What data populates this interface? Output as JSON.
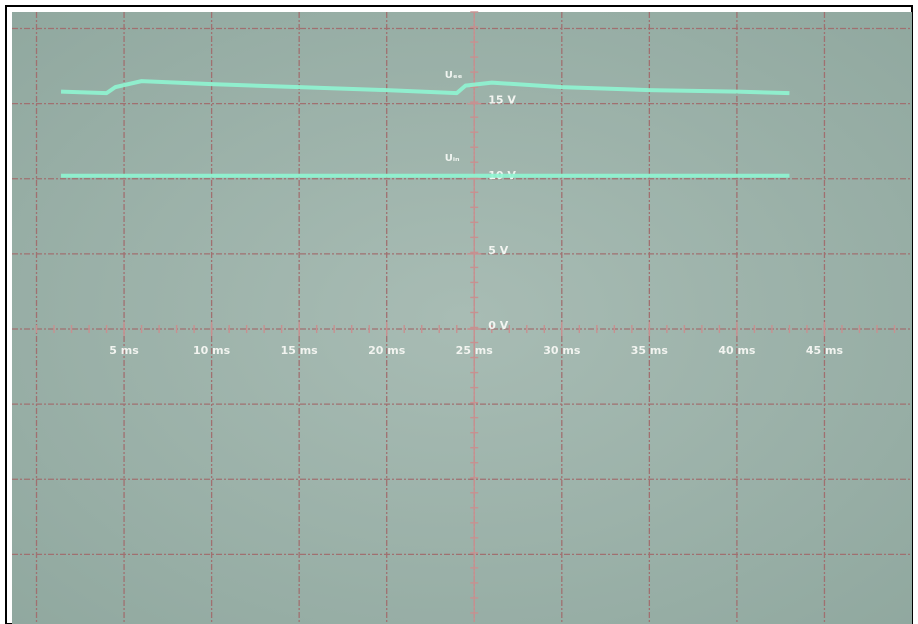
{
  "chart_data": {
    "type": "line",
    "x": [
      1.4,
      4,
      4.5,
      6,
      10,
      15,
      20,
      24,
      24.5,
      26,
      30,
      35,
      40,
      43
    ],
    "series": [
      {
        "name": "Uₑₑ",
        "color": "#8ff5d2",
        "values": [
          15.8,
          15.7,
          16.1,
          16.5,
          16.3,
          16.1,
          15.9,
          15.7,
          16.2,
          16.4,
          16.1,
          15.9,
          15.8,
          15.7
        ]
      },
      {
        "name": "Uᵢₙ",
        "color": "#8ff5d2",
        "values": [
          10.2,
          10.2,
          10.2,
          10.2,
          10.2,
          10.2,
          10.2,
          10.2,
          10.2,
          10.2,
          10.2,
          10.2,
          10.2,
          10.2
        ]
      }
    ],
    "xlim": [
      -1.4,
      50
    ],
    "ylim": [
      -19.5,
      21.1
    ],
    "xticks": [
      {
        "value": 5,
        "label": "5 ms"
      },
      {
        "value": 10,
        "label": "10 ms"
      },
      {
        "value": 15,
        "label": "15 ms"
      },
      {
        "value": 20,
        "label": "20 ms"
      },
      {
        "value": 25,
        "label": "25 ms"
      },
      {
        "value": 30,
        "label": "30 ms"
      },
      {
        "value": 35,
        "label": "35 ms"
      },
      {
        "value": 40,
        "label": "40 ms"
      },
      {
        "value": 45,
        "label": "45 ms"
      }
    ],
    "yticks": [
      {
        "value": 0,
        "label": "0 V"
      },
      {
        "value": 5,
        "label": "5 V"
      },
      {
        "value": 10,
        "label": "10 V"
      },
      {
        "value": 15,
        "label": "15 V"
      }
    ]
  }
}
